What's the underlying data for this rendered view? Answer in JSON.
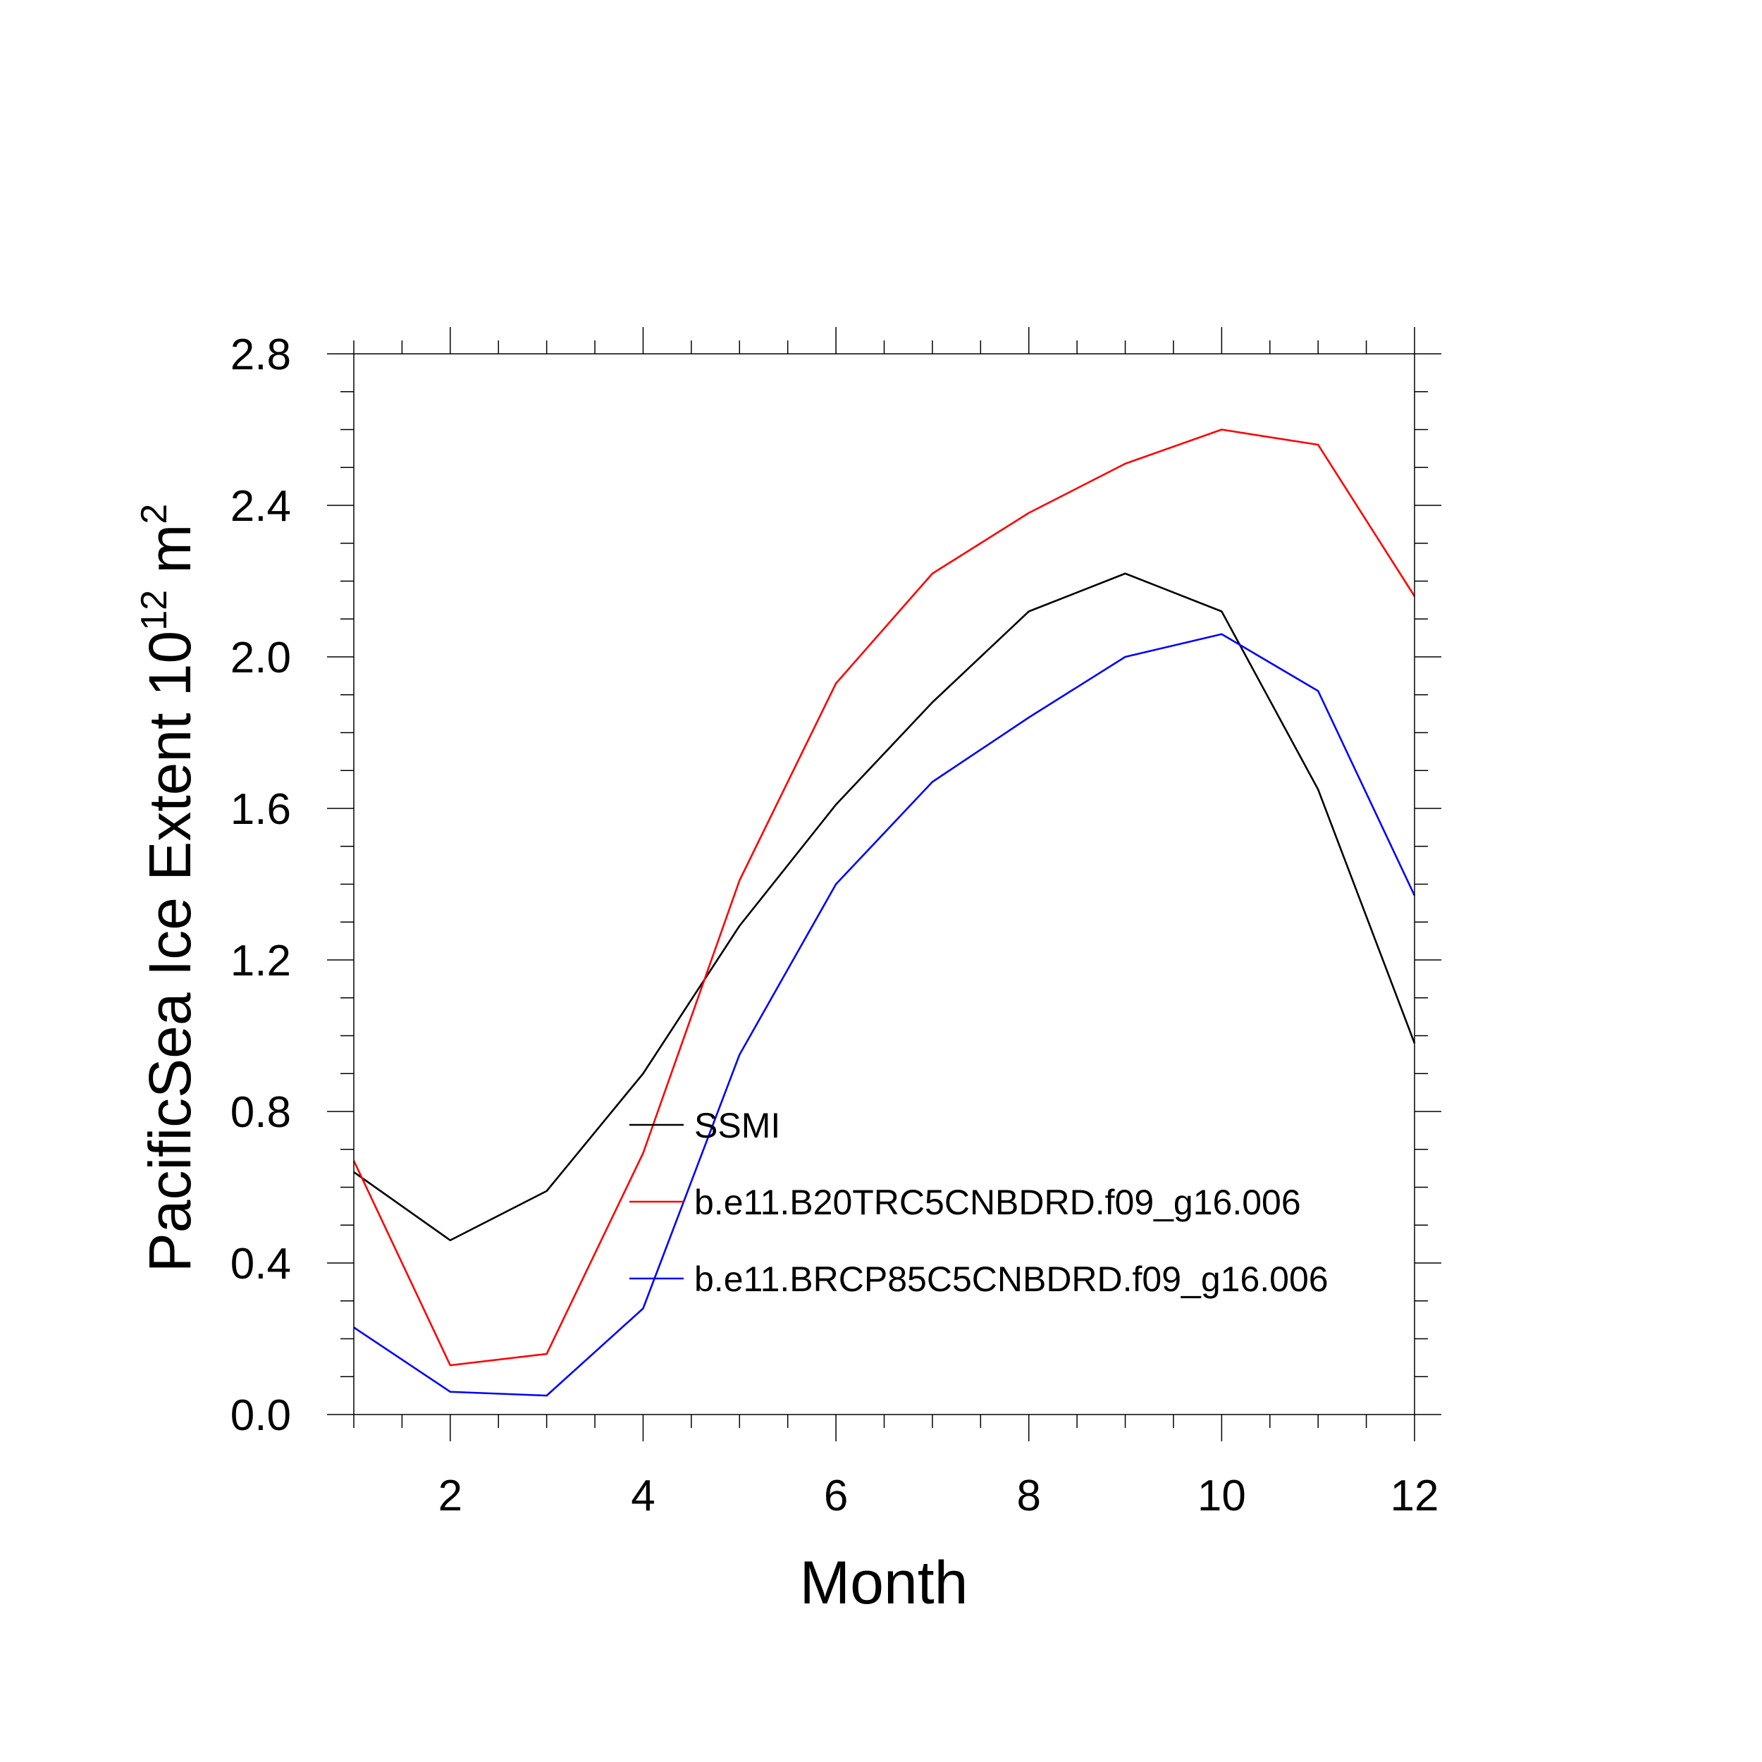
{
  "chart_data": {
    "type": "line",
    "title": "",
    "xlabel": "Month",
    "ylabel_main": "PacificSea Ice Extent 10",
    "ylabel_sup": "12",
    "ylabel_unit": " m",
    "ylabel_unit_sup": "2",
    "xlim": [
      1,
      12
    ],
    "ylim": [
      0,
      2.8
    ],
    "x_ticks": [
      2,
      4,
      6,
      8,
      10,
      12
    ],
    "x_tick_labels": [
      "2",
      "4",
      "6",
      "8",
      "10",
      "12"
    ],
    "y_ticks": [
      0.0,
      0.4,
      0.8,
      1.2,
      1.6,
      2.0,
      2.4,
      2.8
    ],
    "y_tick_labels": [
      "0.0",
      "0.4",
      "0.8",
      "1.2",
      "1.6",
      "2.0",
      "2.4",
      "2.8"
    ],
    "x": [
      1,
      2,
      3,
      4,
      5,
      6,
      7,
      8,
      9,
      10,
      11,
      12
    ],
    "series": [
      {
        "name": "SSMI",
        "color": "#000000",
        "values": [
          0.64,
          0.46,
          0.59,
          0.9,
          1.29,
          1.61,
          1.88,
          2.12,
          2.22,
          2.12,
          1.65,
          0.98
        ]
      },
      {
        "name": "b.e11.B20TRC5CNBDRD.f09_g16.006",
        "color": "#ff0000",
        "values": [
          0.67,
          0.13,
          0.16,
          0.69,
          1.41,
          1.93,
          2.22,
          2.38,
          2.51,
          2.6,
          2.56,
          2.16
        ]
      },
      {
        "name": "b.e11.BRCP85C5CNBDRD.f09_g16.006",
        "color": "#0000ff",
        "values": [
          0.23,
          0.06,
          0.05,
          0.28,
          0.95,
          1.4,
          1.67,
          1.84,
          2.0,
          2.06,
          1.91,
          1.37
        ]
      }
    ],
    "legend_position": "lower-center"
  }
}
